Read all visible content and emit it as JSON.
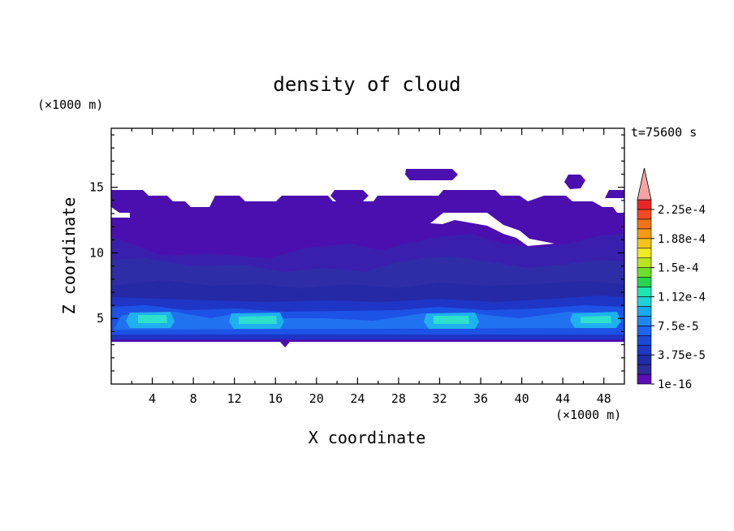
{
  "chart_data": {
    "type": "heatmap",
    "title": "density of cloud",
    "xlabel": "X coordinate",
    "ylabel": "Z coordinate",
    "x_unit": "(×1000 m)",
    "y_unit": "(×1000 m)",
    "time_label": "t=75600 s",
    "xlim": [
      0,
      50
    ],
    "ylim": [
      0,
      19.5
    ],
    "x_ticks": [
      4,
      8,
      12,
      16,
      20,
      24,
      28,
      32,
      36,
      40,
      44,
      48
    ],
    "y_ticks": [
      5,
      10,
      15
    ],
    "colorbar": {
      "labels": [
        "2.25e-4",
        "1.88e-4",
        "1.5e-4",
        "1.12e-4",
        "7.5e-5",
        "3.75e-5",
        "1e-16"
      ],
      "label_levels": [
        0.000225,
        0.000188,
        0.00015,
        0.000112,
        7.5e-05,
        3.75e-05,
        1e-16
      ],
      "colors": [
        "#5a0fb4",
        "#2e2c9a",
        "#1e2ca6",
        "#1f39c7",
        "#1a4ad8",
        "#1e64ec",
        "#1f86f0",
        "#17a8ef",
        "#1fd1d6",
        "#1fe6b0",
        "#27d64e",
        "#6adf2a",
        "#b7e41f",
        "#f0ea25",
        "#f5c319",
        "#f49a14",
        "#f2711b",
        "#ef4a22",
        "#ea2727"
      ],
      "extend_color": "#f4a4a4"
    },
    "fields": {
      "background": {
        "value": "0",
        "color": "#ffffff"
      },
      "upper_cloud_layer": {
        "z_range_km": [
          3.5,
          15
        ],
        "level": "1e-16 to 3.75e-5",
        "color": "#4b0fb0"
      },
      "mid_cloud_region": {
        "z_range_km": [
          6,
          11.5
        ],
        "level": "~3.75e-5",
        "color": "#2f2ca8"
      },
      "lower_band": {
        "z_range_km": [
          3.5,
          6.5
        ],
        "level": "3.75e-5 to 7.5e-5",
        "color": "#1d52e6"
      },
      "peak_cells": [
        {
          "x_km": 4,
          "z_km": 5.1,
          "level": "~1.12e-4"
        },
        {
          "x_km": 14.5,
          "z_km": 5.1,
          "level": "~1.12e-4"
        },
        {
          "x_km": 32.5,
          "z_km": 5.1,
          "level": "~1.12e-4"
        },
        {
          "x_km": 46.5,
          "z_km": 5.0,
          "level": "~1.12e-4"
        }
      ]
    }
  }
}
